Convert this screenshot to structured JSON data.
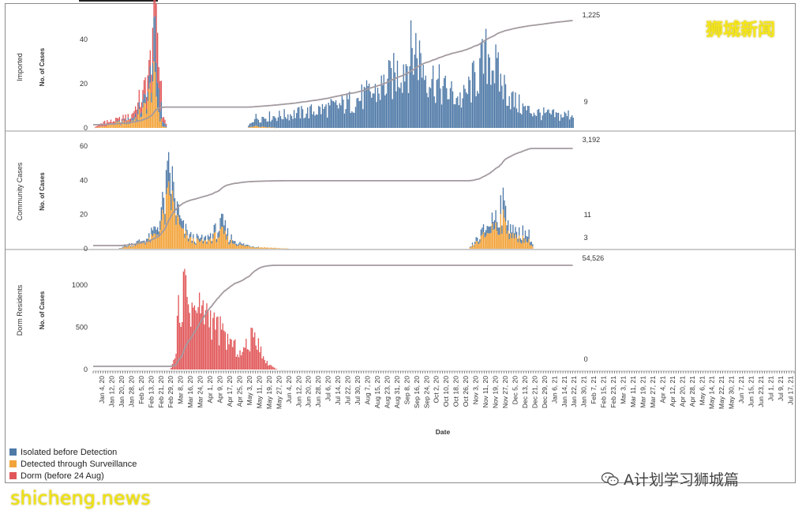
{
  "watermark_top": "狮城新闻",
  "watermark_bottom": "shicheng.news",
  "wechat_account": "A计划学习狮城篇",
  "colors": {
    "isolated": "#4e79a7",
    "surveillance": "#f2a33a",
    "dorm": "#e15759",
    "cumulative_line": "#a39aa0"
  },
  "chart_data": {
    "type": "bar",
    "stacked": true,
    "xlabel": "Date",
    "x_ticks": [
      "Jan 4, 20",
      "Jan 12, 20",
      "Jan 20, 20",
      "Jan 28, 20",
      "Feb 5, 20",
      "Feb 13, 20",
      "Feb 21, 20",
      "Feb 29, 20",
      "Mar 8, 20",
      "Mar 16, 20",
      "Mar 24, 20",
      "Apr 1, 20",
      "Apr 9, 20",
      "Apr 17, 20",
      "Apr 25, 20",
      "May 3, 20",
      "May 11, 20",
      "May 19, 20",
      "May 27, 20",
      "Jun 4, 20",
      "Jun 12, 20",
      "Jun 20, 20",
      "Jun 28, 20",
      "Jul 6, 20",
      "Jul 14, 20",
      "Jul 22, 20",
      "Jul 30, 20",
      "Aug 7, 20",
      "Aug 15, 20",
      "Aug 23, 20",
      "Aug 31, 20",
      "Sep 8, 20",
      "Sep 16, 20",
      "Sep 24, 20",
      "Oct 2, 20",
      "Oct 10, 20",
      "Oct 18, 20",
      "Oct 26, 20",
      "Nov 3, 20",
      "Nov 11, 20",
      "Nov 19, 20",
      "Nov 27, 20",
      "Dec 5, 20",
      "Dec 13, 20",
      "Dec 21, 20",
      "Dec 29, 20",
      "Jan 6, 21",
      "Jan 14, 21",
      "Jan 22, 21",
      "Jan 30, 21",
      "Feb 7, 21",
      "Feb 15, 21",
      "Feb 23, 21",
      "Mar 3, 21",
      "Mar 11, 21",
      "Mar 19, 21",
      "Mar 27, 21",
      "Apr 4, 21",
      "Apr 12, 21",
      "Apr 20, 21",
      "Apr 28, 21",
      "May 6, 21",
      "May 14, 21",
      "May 22, 21",
      "May 30, 21",
      "Jun 7, 21",
      "Jun 15, 21",
      "Jun 23, 21",
      "Jul 1, 21",
      "Jul 9, 21",
      "Jul 17, 21"
    ],
    "legend": [
      {
        "key": "isolated",
        "label": "Isolated before Detection"
      },
      {
        "key": "surveillance",
        "label": "Detected through Surveillance"
      },
      {
        "key": "dorm",
        "label": "Dorm (before 24 Aug)"
      }
    ],
    "panels": [
      {
        "label": "Imported",
        "ylabel": "No. of Cases",
        "yticks": [
          "0",
          "20",
          "40"
        ],
        "ylim": [
          0,
          55
        ],
        "end_labels": {
          "total": "1,225",
          "latest": "9"
        },
        "shape": [
          [
            0,
            0,
            0,
            0
          ],
          [
            10,
            0,
            1,
            2
          ],
          [
            15,
            0,
            2,
            1
          ],
          [
            30,
            1,
            3,
            2
          ],
          [
            40,
            3,
            8,
            5
          ],
          [
            45,
            5,
            15,
            10
          ],
          [
            48,
            10,
            25,
            15
          ],
          [
            50,
            20,
            20,
            25
          ],
          [
            53,
            12,
            8,
            15
          ],
          [
            56,
            3,
            1,
            3
          ],
          [
            60,
            0,
            0,
            0
          ],
          [
            125,
            0,
            0,
            0
          ],
          [
            130,
            4,
            1,
            0
          ],
          [
            150,
            6,
            0,
            0
          ],
          [
            175,
            8,
            0,
            0
          ],
          [
            200,
            11,
            0,
            0
          ],
          [
            230,
            18,
            0,
            0
          ],
          [
            245,
            26,
            0,
            0
          ],
          [
            255,
            34,
            0,
            0
          ],
          [
            262,
            40,
            0,
            0
          ],
          [
            270,
            28,
            0,
            0
          ],
          [
            285,
            19,
            0,
            0
          ],
          [
            300,
            14,
            0,
            0
          ],
          [
            315,
            30,
            0,
            0
          ],
          [
            322,
            38,
            0,
            0
          ],
          [
            330,
            24,
            0,
            0
          ],
          [
            342,
            13,
            0,
            0
          ],
          [
            352,
            9,
            0,
            0
          ],
          [
            365,
            7,
            0,
            0
          ],
          [
            380,
            6,
            0,
            0
          ],
          [
            390,
            7,
            0,
            0
          ]
        ]
      },
      {
        "label": "Community Cases",
        "ylabel": "No. of Cases",
        "yticks": [
          "0",
          "20",
          "40",
          "60"
        ],
        "ylim": [
          0,
          67
        ],
        "end_labels": {
          "total": "3,192",
          "latest": "11",
          "latest_surveillance": "3"
        },
        "shape": [
          [
            0,
            0,
            0,
            0
          ],
          [
            20,
            0,
            0,
            0
          ],
          [
            25,
            1,
            1,
            0
          ],
          [
            35,
            1,
            3,
            0
          ],
          [
            45,
            2,
            5,
            0
          ],
          [
            52,
            5,
            10,
            0
          ],
          [
            58,
            10,
            22,
            0
          ],
          [
            62,
            15,
            35,
            0
          ],
          [
            67,
            8,
            20,
            0
          ],
          [
            72,
            4,
            10,
            0
          ],
          [
            80,
            2,
            5,
            0
          ],
          [
            90,
            2,
            4,
            0
          ],
          [
            100,
            4,
            8,
            0
          ],
          [
            105,
            6,
            10,
            0
          ],
          [
            110,
            3,
            5,
            0
          ],
          [
            120,
            1,
            2,
            0
          ],
          [
            135,
            0,
            1,
            0
          ],
          [
            160,
            0,
            0,
            0
          ],
          [
            200,
            0,
            0,
            0
          ],
          [
            305,
            0,
            0,
            0
          ],
          [
            315,
            3,
            6,
            0
          ],
          [
            325,
            6,
            14,
            0
          ],
          [
            332,
            10,
            18,
            0
          ],
          [
            338,
            7,
            12,
            0
          ],
          [
            342,
            3,
            6,
            0
          ],
          [
            345,
            4,
            7,
            0
          ],
          [
            350,
            5,
            6,
            0
          ],
          [
            355,
            4,
            4,
            0
          ],
          [
            358,
            0,
            0,
            0
          ],
          [
            390,
            0,
            0,
            0
          ]
        ]
      },
      {
        "label": "Dorm Residents",
        "ylabel": "No. of Cases",
        "yticks": [
          "0",
          "500",
          "1000"
        ],
        "ylim": [
          0,
          1400
        ],
        "end_labels": {
          "total": "54,526",
          "latest": "0"
        },
        "shape": [
          [
            0,
            0,
            0,
            0
          ],
          [
            62,
            0,
            0,
            0
          ],
          [
            66,
            0,
            0,
            120
          ],
          [
            70,
            0,
            0,
            800
          ],
          [
            74,
            0,
            0,
            950
          ],
          [
            80,
            0,
            0,
            700
          ],
          [
            90,
            0,
            0,
            700
          ],
          [
            100,
            0,
            0,
            500
          ],
          [
            110,
            0,
            0,
            330
          ],
          [
            120,
            0,
            0,
            180
          ],
          [
            130,
            0,
            0,
            400
          ],
          [
            135,
            0,
            0,
            330
          ],
          [
            138,
            0,
            0,
            120
          ],
          [
            142,
            0,
            0,
            70
          ],
          [
            147,
            0,
            0,
            20
          ],
          [
            150,
            0,
            0,
            0
          ],
          [
            390,
            0,
            0,
            0
          ]
        ]
      }
    ]
  }
}
